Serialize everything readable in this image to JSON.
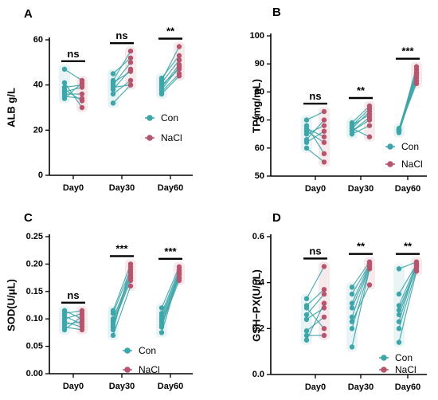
{
  "chart_data": [
    {
      "panel": "A",
      "type": "paired-scatter",
      "ylabel": "ALB g/L",
      "ylim": [
        0,
        60
      ],
      "yticks": [
        0,
        20,
        40,
        60
      ],
      "categories": [
        "Day0",
        "Day30",
        "Day60"
      ],
      "series": [
        {
          "name": "Con",
          "color": "#3ea5a9"
        },
        {
          "name": "NaCl",
          "color": "#b5556e"
        }
      ],
      "legend_position": "middle-right",
      "groups": [
        {
          "category": "Day0",
          "significance": "ns",
          "con": [
            47,
            41,
            39,
            38,
            37,
            36,
            35,
            34
          ],
          "nacl": [
            42,
            30,
            40,
            33,
            39,
            36,
            34,
            41
          ]
        },
        {
          "category": "Day30",
          "significance": "ns",
          "con": [
            42,
            39,
            41,
            38,
            36,
            32,
            40,
            45
          ],
          "nacl": [
            55,
            40,
            46,
            47,
            42,
            40,
            50,
            52
          ]
        },
        {
          "category": "Day60",
          "significance": "**",
          "con": [
            42,
            40,
            39,
            38,
            37,
            36,
            41,
            43
          ],
          "nacl": [
            57,
            47,
            49,
            48,
            45,
            44,
            51,
            53
          ]
        }
      ]
    },
    {
      "panel": "B",
      "type": "paired-scatter",
      "ylabel": "TP(mg/mL)",
      "ylim": [
        50,
        100
      ],
      "yticks": [
        50,
        60,
        70,
        80,
        90,
        100
      ],
      "categories": [
        "Day0",
        "Day30",
        "Day60"
      ],
      "series": [
        {
          "name": "Con",
          "color": "#3ea5a9"
        },
        {
          "name": "NaCl",
          "color": "#b5556e"
        }
      ],
      "legend_position": "bottom-right",
      "groups": [
        {
          "category": "Day0",
          "significance": "ns",
          "con": [
            70,
            68,
            66,
            65,
            63,
            62,
            60,
            67
          ],
          "nacl": [
            73,
            58,
            62,
            68,
            70,
            66,
            55,
            64
          ]
        },
        {
          "category": "Day30",
          "significance": "**",
          "con": [
            69,
            68,
            67,
            66,
            65,
            67,
            68,
            66
          ],
          "nacl": [
            75,
            74,
            73,
            71,
            68,
            64,
            72,
            70
          ]
        },
        {
          "category": "Day60",
          "significance": "***",
          "con": [
            66,
            66.5,
            67,
            66,
            65.5,
            66.2,
            66.8,
            66.4
          ],
          "nacl": [
            89,
            88,
            87,
            86,
            85,
            84,
            83,
            86.5
          ]
        }
      ]
    },
    {
      "panel": "C",
      "type": "paired-scatter",
      "ylabel": "SOD(U/μL)",
      "ylim": [
        0,
        0.25
      ],
      "yticks": [
        0.0,
        0.05,
        0.1,
        0.15,
        0.2,
        0.25
      ],
      "categories": [
        "Day0",
        "Day30",
        "Day60"
      ],
      "series": [
        {
          "name": "Con",
          "color": "#3ea5a9"
        },
        {
          "name": "NaCl",
          "color": "#b5556e"
        }
      ],
      "legend_position": "bottom-right",
      "groups": [
        {
          "category": "Day0",
          "significance": "ns",
          "con": [
            0.115,
            0.11,
            0.105,
            0.1,
            0.095,
            0.09,
            0.085,
            0.08
          ],
          "nacl": [
            0.1,
            0.115,
            0.09,
            0.11,
            0.085,
            0.095,
            0.08,
            0.105
          ]
        },
        {
          "category": "Day30",
          "significance": "***",
          "con": [
            0.115,
            0.11,
            0.1,
            0.095,
            0.09,
            0.085,
            0.08,
            0.07
          ],
          "nacl": [
            0.2,
            0.19,
            0.18,
            0.175,
            0.17,
            0.185,
            0.195,
            0.16
          ]
        },
        {
          "category": "Day60",
          "significance": "***",
          "con": [
            0.12,
            0.11,
            0.105,
            0.1,
            0.095,
            0.09,
            0.085,
            0.075
          ],
          "nacl": [
            0.195,
            0.19,
            0.185,
            0.18,
            0.175,
            0.17,
            0.188,
            0.182
          ]
        }
      ]
    },
    {
      "panel": "D",
      "type": "paired-scatter",
      "ylabel": "GSH−PX(U/μL)",
      "ylim": [
        0,
        0.6
      ],
      "yticks": [
        0.0,
        0.2,
        0.4,
        0.6
      ],
      "categories": [
        "Day0",
        "Day30",
        "Day60"
      ],
      "series": [
        {
          "name": "Con",
          "color": "#3ea5a9"
        },
        {
          "name": "NaCl",
          "color": "#b5556e"
        }
      ],
      "legend_position": "bottom-right",
      "groups": [
        {
          "category": "Day0",
          "significance": "ns",
          "con": [
            0.33,
            0.3,
            0.29,
            0.26,
            0.24,
            0.19,
            0.17,
            0.15
          ],
          "nacl": [
            0.47,
            0.37,
            0.2,
            0.35,
            0.29,
            0.25,
            0.17,
            0.31
          ]
        },
        {
          "category": "Day30",
          "significance": "**",
          "con": [
            0.38,
            0.35,
            0.31,
            0.29,
            0.25,
            0.2,
            0.12,
            0.23
          ],
          "nacl": [
            0.49,
            0.48,
            0.48,
            0.47,
            0.47,
            0.46,
            0.46,
            0.39
          ]
        },
        {
          "category": "Day60",
          "significance": "**",
          "con": [
            0.46,
            0.35,
            0.3,
            0.28,
            0.26,
            0.2,
            0.14,
            0.23
          ],
          "nacl": [
            0.49,
            0.48,
            0.48,
            0.47,
            0.47,
            0.46,
            0.45,
            0.48
          ]
        }
      ]
    }
  ]
}
